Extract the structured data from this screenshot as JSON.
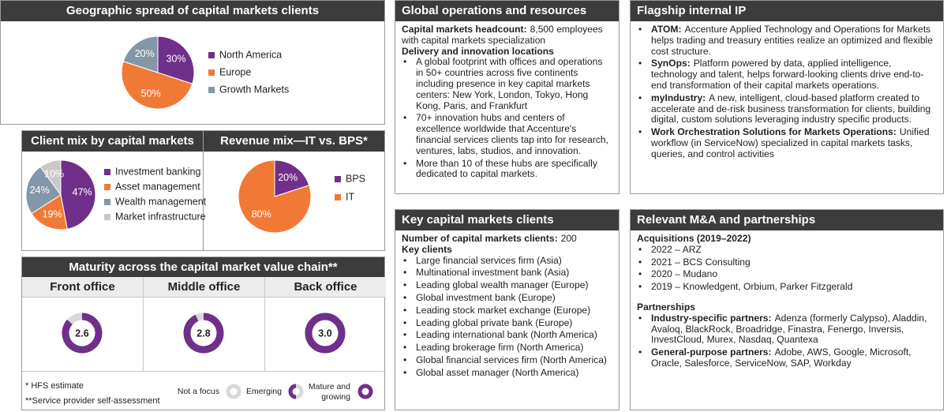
{
  "chart_data": [
    {
      "type": "pie",
      "title": "Geographic spread of capital markets clients",
      "categories": [
        "North America",
        "Europe",
        "Growth Markets"
      ],
      "values": [
        30,
        50,
        20
      ],
      "value_labels": [
        "30%",
        "50%",
        "20%"
      ],
      "colors": [
        "#702f8a",
        "#f07a35",
        "#8497a8"
      ]
    },
    {
      "type": "pie",
      "title": "Client mix by capital markets",
      "categories": [
        "Investment banking",
        "Asset management",
        "Wealth management",
        "Market infrastructure"
      ],
      "values": [
        47,
        19,
        24,
        10
      ],
      "value_labels": [
        "47%",
        "19%",
        "24%",
        "10%"
      ],
      "colors": [
        "#702f8a",
        "#f07a35",
        "#8497a8",
        "#c9c9c9"
      ]
    },
    {
      "type": "pie",
      "title": "Revenue mix—IT vs. BPS*",
      "categories": [
        "BPS",
        "IT"
      ],
      "values": [
        20,
        80
      ],
      "value_labels": [
        "20%",
        "80%"
      ],
      "colors": [
        "#702f8a",
        "#f07a35"
      ]
    },
    {
      "type": "gauge",
      "title": "Maturity across the capital market value chain**",
      "categories": [
        "Front office",
        "Middle office",
        "Back office"
      ],
      "values": [
        2.6,
        2.8,
        3.0
      ],
      "value_labels": [
        "2.6",
        "2.8",
        "3.0"
      ],
      "ylim": [
        0,
        3
      ],
      "color": "#702f8a",
      "legend": [
        "Not a focus",
        "Emerging",
        "Mature and growing"
      ]
    }
  ],
  "footnotes": [
    "* HFS estimate",
    "**Service provider self-assessment"
  ],
  "global_operations": {
    "title": "Global operations and resources",
    "headcount": {
      "term": "Capital markets headcount:",
      "text": "8,500 employees with capital markets specialization"
    },
    "subheading": "Delivery and innovation locations",
    "bullets": [
      "A global footprint with offices and operations in 50+ countries across five continents including presence in key capital markets centers: New York, London, Tokyo, Hong Kong, Paris, and Frankfurt",
      "70+ innovation hubs and centers of excellence worldwide that Accenture's financial services clients tap into for research, ventures, labs, studios, and innovation.",
      "More than 10 of these hubs are specifically dedicated to capital markets."
    ]
  },
  "flagship_ip": {
    "title": "Flagship internal IP",
    "bullets": [
      {
        "term": "ATOM:",
        "text": "Accenture Applied Technology and Operations for Markets helps trading and treasury entities realize an optimized and flexible cost structure."
      },
      {
        "term": "SynOps:",
        "text": "Platform powered by data, applied intelligence, technology and talent, helps forward-looking clients drive end-to-end transformation of their capital markets operations."
      },
      {
        "term": "myIndustry:",
        "text": "A new, intelligent, cloud-based platform created to accelerate and de-risk business transformation for clients, building digital, custom solutions leveraging industry specific products."
      },
      {
        "term": "Work Orchestration Solutions for Markets Operations:",
        "text": "Unified workflow (in ServiceNow) specialized in capital markets tasks, queries, and control activities"
      }
    ]
  },
  "key_clients": {
    "title": "Key capital markets clients",
    "count": {
      "term": "Number of capital markets clients:",
      "text": "200"
    },
    "subheading": "Key clients",
    "bullets": [
      "Large financial services firm (Asia)",
      "Multinational investment bank (Asia)",
      "Leading global wealth manager (Europe)",
      "Global investment bank (Europe)",
      "Leading stock market exchange (Europe)",
      "Leading global private bank (Europe)",
      "Leading international bank (North America)",
      "Leading brokerage firm (North America)",
      "Global financial services firm (North America)",
      "Global asset manager (North America)"
    ]
  },
  "mna": {
    "title": "Relevant M&A and partnerships",
    "acquisitions": {
      "heading": "Acquisitions (2019–2022)",
      "bullets": [
        "2022 – ARZ",
        "2021 – BCS Consulting",
        "2020 – Mudano",
        "2019 – Knowledgent, Orbium, Parker Fitzgerald"
      ]
    },
    "partnerships": {
      "heading": "Partnerships",
      "bullets": [
        {
          "term": "Industry-specific partners:",
          "text": "Adenza (formerly Calypso), Aladdin, Avaloq, BlackRock, Broadridge, Finastra, Fenergo, Inversis, InvestCloud, Murex, Nasdaq, Quantexa"
        },
        {
          "term": "General-purpose partners:",
          "text": "Adobe, AWS, Google, Microsoft, Oracle, Salesforce, ServiceNow, SAP, Workday"
        }
      ]
    }
  }
}
